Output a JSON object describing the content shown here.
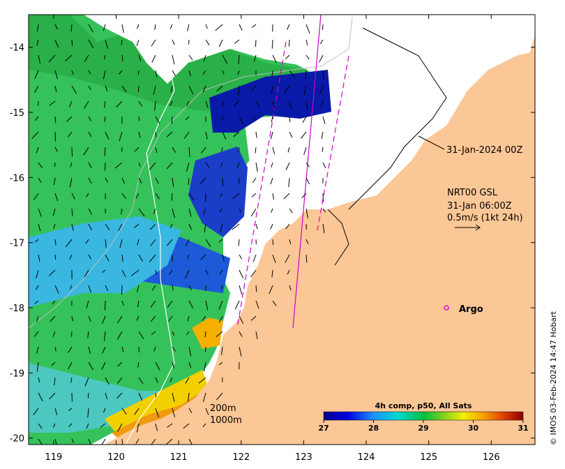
{
  "map": {
    "x_ticks": [
      "119",
      "120",
      "121",
      "122",
      "123",
      "124",
      "125",
      "126"
    ],
    "y_ticks": [
      "-14",
      "-15",
      "-16",
      "-17",
      "-18",
      "-19",
      "-20"
    ],
    "lon_range": [
      118.6,
      126.7
    ],
    "lat_range": [
      -20.1,
      -13.5
    ]
  },
  "annotations": {
    "swath_time": "31-Jan-2024 00Z",
    "current_title": "NRT00 GSL",
    "current_time": "31-Jan 06:00Z",
    "current_scale": "0.5m/s (1kt 24h)",
    "argo_label": "Argo",
    "depth_200": "200m",
    "depth_1000": "1000m"
  },
  "colorbar": {
    "title": "4h comp, p50, All Sats",
    "ticks": [
      "27",
      "28",
      "29",
      "30",
      "31"
    ],
    "range": [
      27,
      31
    ]
  },
  "credit": "© IMOS 03-Feb-2024 14:47 Hobart",
  "colors": {
    "land": "#fcc796",
    "argo": "#e000e0",
    "swath": "#cc00cc"
  }
}
